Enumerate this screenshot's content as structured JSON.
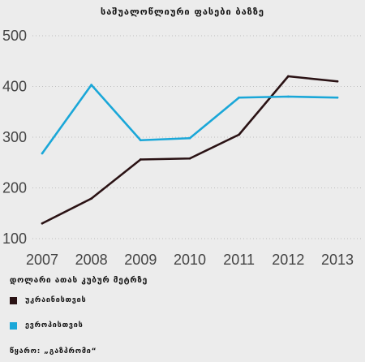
{
  "chart_data": {
    "type": "line",
    "title": "საშუალოწლიური ფასები ბაზზე",
    "unit_label": "დოლარი ათას კუბურ მეტრზე",
    "source": "წყარო: „გაზპრომი“",
    "x": [
      "2007",
      "2008",
      "2009",
      "2010",
      "2011",
      "2012",
      "2013"
    ],
    "yticks": [
      100,
      200,
      300,
      400,
      500
    ],
    "ylim": [
      100,
      500
    ],
    "grid": "dotted horizontal",
    "series": [
      {
        "name": "უკრაინისთვის",
        "color": "#2a1214",
        "values": [
          130,
          179,
          256,
          258,
          305,
          420,
          410
        ]
      },
      {
        "name": "ევროპისთვის",
        "color": "#1aa7d8",
        "values": [
          268,
          403,
          294,
          298,
          378,
          380,
          378
        ]
      }
    ]
  }
}
